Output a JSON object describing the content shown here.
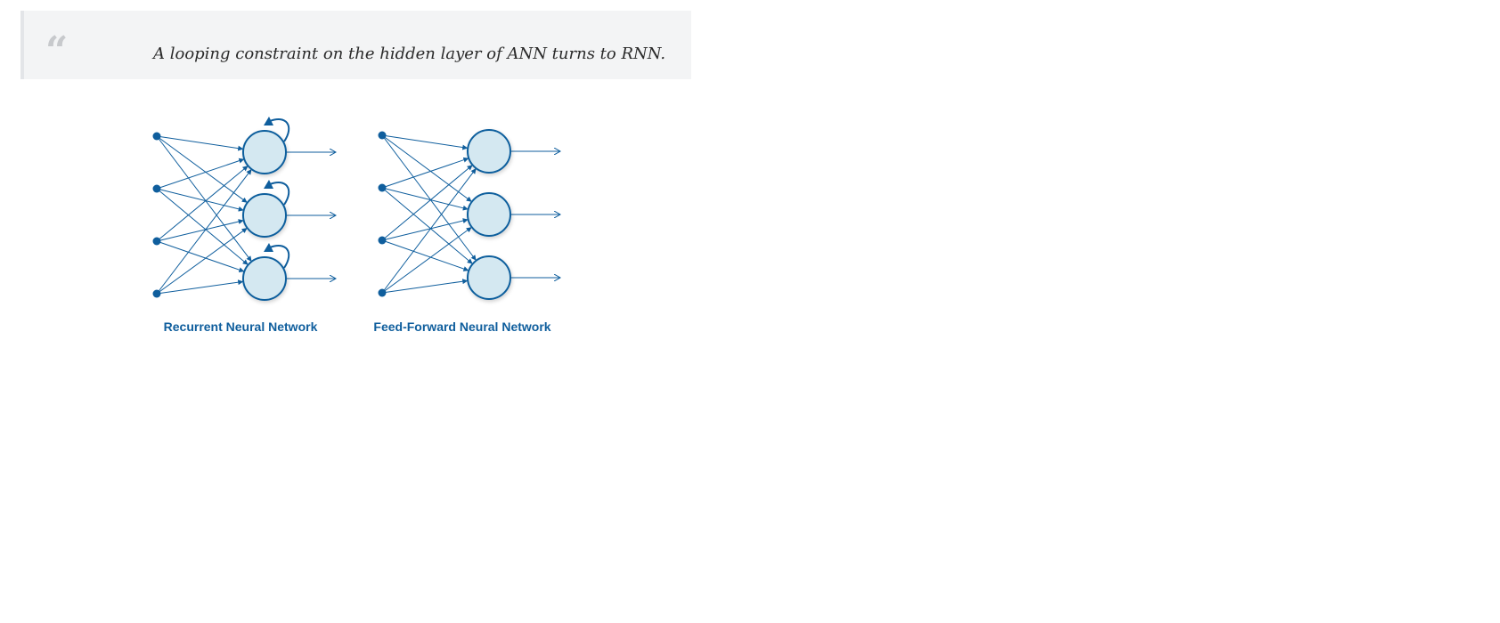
{
  "quote": {
    "mark": "“",
    "text": "A looping constraint on the hidden layer of ANN turns to RNN."
  },
  "diagrams": [
    {
      "id": "rnn",
      "label": "Recurrent Neural Network",
      "input_count": 4,
      "hidden_count": 3,
      "self_loops": true
    },
    {
      "id": "ffnn",
      "label": "Feed-Forward Neural Network",
      "input_count": 4,
      "hidden_count": 3,
      "self_loops": false
    }
  ],
  "colors": {
    "stroke": "#0f5e9d",
    "node_fill": "#d4e8f1",
    "input_dot": "#0f5e9d",
    "label": "#0f5e9d",
    "quote_background": "#f3f4f5",
    "quote_mark": "#c7c9cc"
  }
}
